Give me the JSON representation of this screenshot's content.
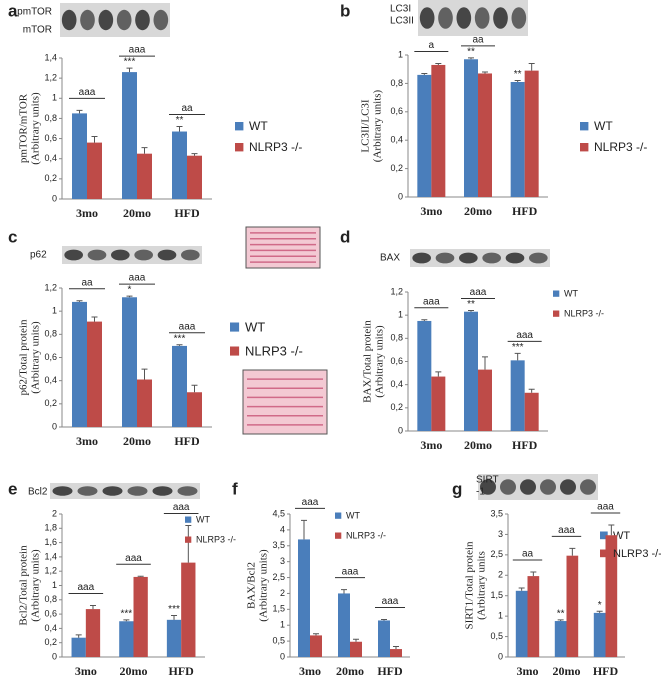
{
  "chart_data": [
    {
      "type": "bar",
      "panel": "a",
      "blot_labels": [
        "pmTOR",
        "mTOR"
      ],
      "ylabel": [
        "pmTOR/mTOR",
        "(Arbitrary units)"
      ],
      "categories": [
        "3mo",
        "20mo",
        "HFD"
      ],
      "series": [
        {
          "name": "WT",
          "color": "#4a7ebb",
          "values": [
            0.85,
            1.26,
            0.67
          ],
          "errors": [
            0.03,
            0.04,
            0.05
          ]
        },
        {
          "name": "NLRP3 -/-",
          "color": "#be4b48",
          "values": [
            0.56,
            0.45,
            0.43
          ],
          "errors": [
            0.06,
            0.06,
            0.02
          ]
        }
      ],
      "ylim": [
        0,
        1.4
      ],
      "yticks": [
        0,
        {
          "value": 0.2,
          "label": "0,2"
        },
        {
          "value": 0.4,
          "label": "0,4"
        },
        {
          "value": 0.6,
          "label": "0,6"
        },
        {
          "value": 0.8,
          "label": "0,8"
        },
        1,
        {
          "value": 1.2,
          "label": "1,2"
        },
        {
          "value": 1.4,
          "label": "1,4"
        }
      ],
      "annotations": [
        {
          "text": "aaa",
          "category": 0
        },
        {
          "text": "***",
          "category": 1
        },
        {
          "text": "aaa",
          "category": 1
        },
        {
          "text": "**",
          "category": 2
        },
        {
          "text": "aa",
          "category": 2
        }
      ]
    },
    {
      "type": "bar",
      "panel": "b",
      "blot_labels": [
        "LC3I",
        "LC3II"
      ],
      "ylabel": [
        "LC3II/LC3I",
        "(Arbitrary units)"
      ],
      "categories": [
        "3mo",
        "20mo",
        "HFD"
      ],
      "series": [
        {
          "name": "WT",
          "color": "#4a7ebb",
          "values": [
            0.86,
            0.97,
            0.81
          ],
          "errors": [
            0.01,
            0.01,
            0.01
          ]
        },
        {
          "name": "NLRP3 -/-",
          "color": "#be4b48",
          "values": [
            0.93,
            0.87,
            0.89
          ],
          "errors": [
            0.01,
            0.01,
            0.05
          ]
        }
      ],
      "ylim": [
        0,
        1
      ],
      "yticks": [
        0,
        {
          "value": 0.2,
          "label": "0,2"
        },
        {
          "value": 0.4,
          "label": "0,4"
        },
        {
          "value": 0.6,
          "label": "0,6"
        },
        {
          "value": 0.8,
          "label": "0,8"
        },
        1
      ],
      "annotations": [
        {
          "text": "a",
          "category": 0
        },
        {
          "text": "**",
          "category": 1
        },
        {
          "text": "aa",
          "category": 1
        },
        {
          "text": "**",
          "category": 2
        }
      ]
    },
    {
      "type": "bar",
      "panel": "c",
      "blot_labels": [
        "p62"
      ],
      "ylabel": [
        "p62/Total protein",
        "(Arbitrary units)"
      ],
      "categories": [
        "3mo",
        "20mo",
        "HFD"
      ],
      "series": [
        {
          "name": "WT",
          "color": "#4a7ebb",
          "values": [
            1.08,
            1.12,
            0.7
          ],
          "errors": [
            0.01,
            0.01,
            0.01
          ]
        },
        {
          "name": "NLRP3 -/-",
          "color": "#be4b48",
          "values": [
            0.91,
            0.41,
            0.3
          ],
          "errors": [
            0.04,
            0.09,
            0.06
          ]
        }
      ],
      "ylim": [
        0,
        1.2
      ],
      "yticks": [
        0,
        {
          "value": 0.2,
          "label": "0,2"
        },
        {
          "value": 0.4,
          "label": "0,4"
        },
        {
          "value": 0.6,
          "label": "0,6"
        },
        {
          "value": 0.8,
          "label": "0,8"
        },
        1,
        {
          "value": 1.2,
          "label": "1,2"
        }
      ],
      "annotations": [
        {
          "text": "aa",
          "category": 0
        },
        {
          "text": "*",
          "category": 1
        },
        {
          "text": "aaa",
          "category": 1
        },
        {
          "text": "***",
          "category": 2
        },
        {
          "text": "aaa",
          "category": 2
        }
      ]
    },
    {
      "type": "bar",
      "panel": "d",
      "blot_labels": [
        "BAX"
      ],
      "ylabel": [
        "BAX/Total protein",
        "(Arbitrary units)"
      ],
      "categories": [
        "3mo",
        "20mo",
        "HFD"
      ],
      "series": [
        {
          "name": "WT",
          "color": "#4a7ebb",
          "values": [
            0.95,
            1.03,
            0.61
          ],
          "errors": [
            0.01,
            0.01,
            0.06
          ]
        },
        {
          "name": "NLRP3 -/-",
          "color": "#be4b48",
          "values": [
            0.47,
            0.53,
            0.33
          ],
          "errors": [
            0.04,
            0.11,
            0.03
          ]
        }
      ],
      "ylim": [
        0,
        1.2
      ],
      "yticks": [
        0,
        {
          "value": 0.2,
          "label": "0,2"
        },
        {
          "value": 0.4,
          "label": "0,4"
        },
        {
          "value": 0.6,
          "label": "0,6"
        },
        {
          "value": 0.8,
          "label": "0,8"
        },
        1,
        {
          "value": 1.2,
          "label": "1,2"
        }
      ],
      "annotations": [
        {
          "text": "aaa",
          "category": 0
        },
        {
          "text": "**",
          "category": 1
        },
        {
          "text": "aaa",
          "category": 1
        },
        {
          "text": "***",
          "category": 2
        },
        {
          "text": "aaa",
          "category": 2
        }
      ]
    },
    {
      "type": "bar",
      "panel": "e",
      "blot_labels": [
        "Bcl2"
      ],
      "ylabel": [
        "Bcl2/Total protein",
        "(Arbitrary units)"
      ],
      "categories": [
        "3mo",
        "20mo",
        "HFD"
      ],
      "series": [
        {
          "name": "WT",
          "color": "#4a7ebb",
          "values": [
            0.27,
            0.5,
            0.52
          ],
          "errors": [
            0.04,
            0.02,
            0.06
          ]
        },
        {
          "name": "NLRP3 -/-",
          "color": "#be4b48",
          "values": [
            0.67,
            1.12,
            1.32
          ],
          "errors": [
            0.05,
            0.01,
            0.52
          ]
        }
      ],
      "ylim": [
        0,
        2
      ],
      "yticks": [
        0,
        {
          "value": 0.2,
          "label": "0,2"
        },
        {
          "value": 0.4,
          "label": "0,4"
        },
        {
          "value": 0.6,
          "label": "0,6"
        },
        {
          "value": 0.8,
          "label": "0,8"
        },
        1,
        {
          "value": 1.2,
          "label": "1,2"
        },
        {
          "value": 1.4,
          "label": "1,4"
        },
        {
          "value": 1.6,
          "label": "1,6"
        },
        {
          "value": 1.8,
          "label": "1,8"
        },
        2
      ],
      "annotations": [
        {
          "text": "aaa",
          "category": 0
        },
        {
          "text": "***",
          "category": 1
        },
        {
          "text": "aaa",
          "category": 1
        },
        {
          "text": "***",
          "category": 2
        },
        {
          "text": "aaa",
          "category": 2
        }
      ]
    },
    {
      "type": "bar",
      "panel": "f",
      "blot_labels": [],
      "ylabel": [
        "BAX/Bcl2",
        "(Arbitrary units)"
      ],
      "categories": [
        "3mo",
        "20mo",
        "HFD"
      ],
      "series": [
        {
          "name": "WT",
          "color": "#4a7ebb",
          "values": [
            3.7,
            2.0,
            1.15
          ],
          "errors": [
            0.6,
            0.12,
            0.03
          ]
        },
        {
          "name": "NLRP3 -/-",
          "color": "#be4b48",
          "values": [
            0.68,
            0.48,
            0.25
          ],
          "errors": [
            0.05,
            0.08,
            0.08
          ]
        }
      ],
      "ylim": [
        0,
        4.5
      ],
      "yticks": [
        0,
        {
          "value": 0.5,
          "label": "0,5"
        },
        1,
        {
          "value": 1.5,
          "label": "1,5"
        },
        2,
        {
          "value": 2.5,
          "label": "2,5"
        },
        3,
        {
          "value": 3.5,
          "label": "3,5"
        },
        4,
        {
          "value": 4.5,
          "label": "4,5"
        }
      ],
      "annotations": [
        {
          "text": "aaa",
          "category": 0
        },
        {
          "text": "aaa",
          "category": 1
        },
        {
          "text": "aaa",
          "category": 2
        }
      ]
    },
    {
      "type": "bar",
      "panel": "g",
      "blot_labels": [
        "SIRT",
        "-1"
      ],
      "ylabel": [
        "SIRT1/Total protein",
        "(Arbitrary units"
      ],
      "categories": [
        "3mo",
        "20mo",
        "HFD"
      ],
      "series": [
        {
          "name": "WT",
          "color": "#4a7ebb",
          "values": [
            1.62,
            0.88,
            1.08
          ],
          "errors": [
            0.07,
            0.03,
            0.04
          ]
        },
        {
          "name": "NLRP3 -/-",
          "color": "#be4b48",
          "values": [
            1.98,
            2.48,
            2.98
          ],
          "errors": [
            0.1,
            0.18,
            0.25
          ]
        }
      ],
      "ylim": [
        0,
        3.5
      ],
      "yticks": [
        0,
        {
          "value": 0.5,
          "label": "0,5"
        },
        1,
        {
          "value": 1.5,
          "label": "1,5"
        },
        2,
        {
          "value": 2.5,
          "label": "2,5"
        },
        3,
        {
          "value": 3.5,
          "label": "3,5"
        }
      ],
      "annotations": [
        {
          "text": "aa",
          "category": 0
        },
        {
          "text": "**",
          "category": 1
        },
        {
          "text": "aaa",
          "category": 1
        },
        {
          "text": "*",
          "category": 2
        },
        {
          "text": "aaa",
          "category": 2
        }
      ]
    }
  ]
}
